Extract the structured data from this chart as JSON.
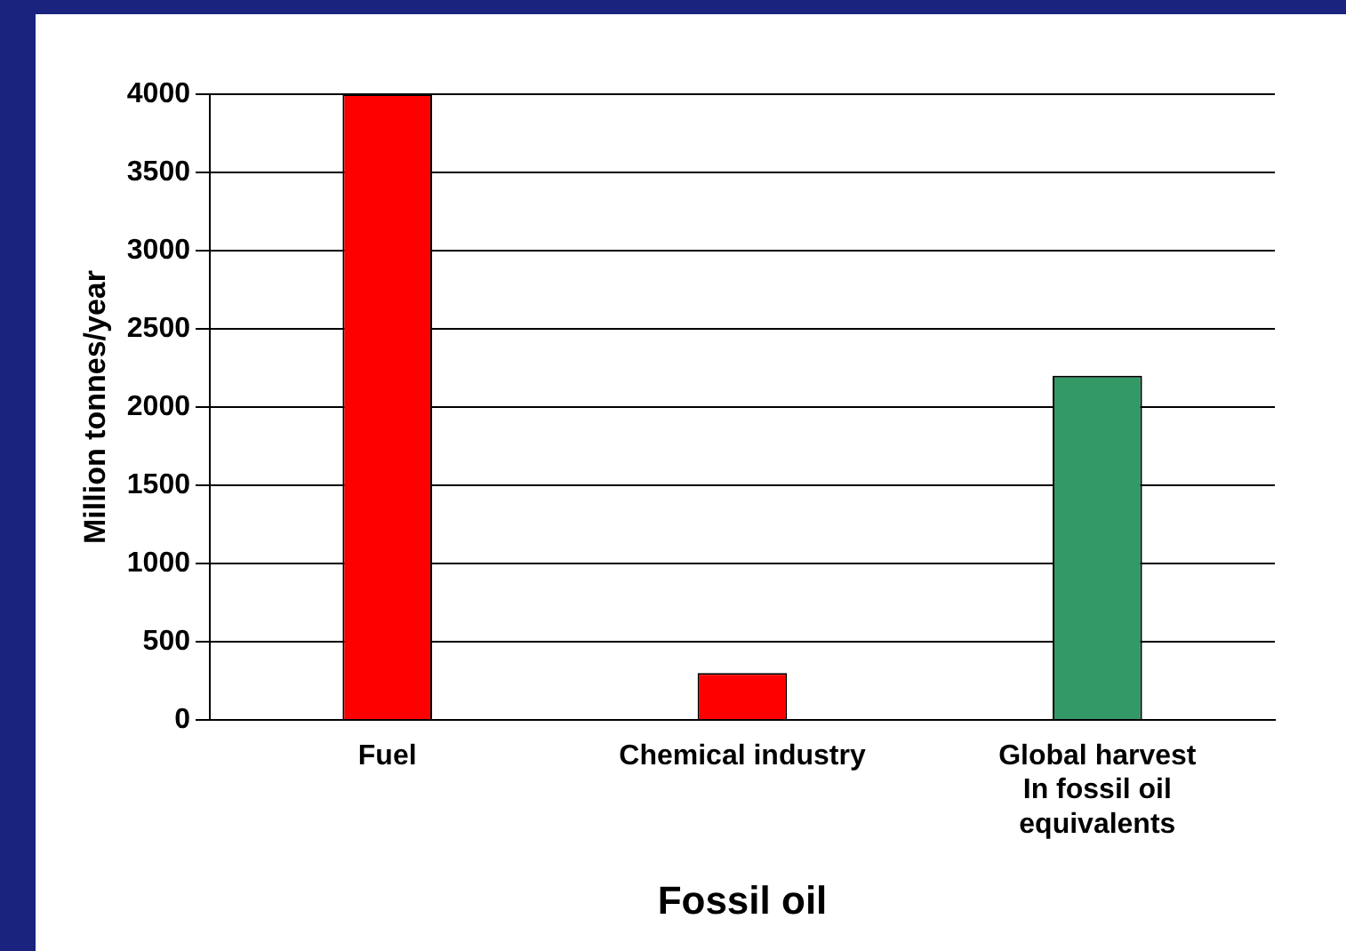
{
  "chart_data": {
    "type": "bar",
    "xlabel": "Fossil oil",
    "ylabel": "Million tonnes/year",
    "categories": [
      "Fuel",
      "Chemical industry",
      "Global harvest\nIn fossil oil\nequivalents"
    ],
    "values": [
      4000,
      300,
      2200
    ],
    "colors": [
      "#ff0000",
      "#ff0000",
      "#339966"
    ],
    "ylim": [
      0,
      4000
    ],
    "yticks": [
      0,
      500,
      1000,
      1500,
      2000,
      2500,
      3000,
      3500,
      4000
    ],
    "grid": "y",
    "legend": false
  }
}
